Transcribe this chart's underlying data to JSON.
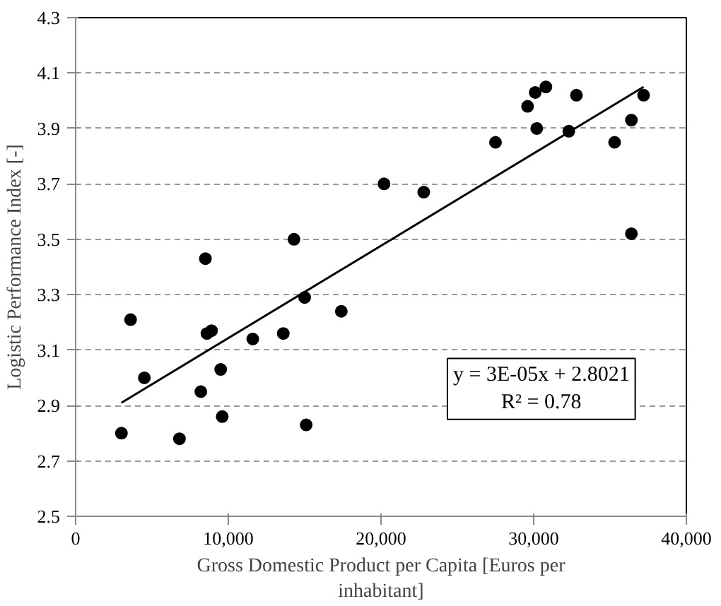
{
  "chart_data": {
    "type": "scatter",
    "xlabel": "Gross Domestic Product per Capita [Euros per inhabitant]",
    "ylabel": "Logistic Performance Index [-]",
    "x": [
      3000,
      3600,
      4500,
      6800,
      8200,
      8500,
      8600,
      8900,
      9500,
      9600,
      11600,
      13600,
      14300,
      15000,
      15100,
      17400,
      20200,
      22800,
      27500,
      29600,
      30100,
      30200,
      30800,
      32300,
      32800,
      35300,
      36400,
      36400,
      37200
    ],
    "values": [
      2.8,
      3.21,
      3.0,
      2.78,
      2.95,
      3.43,
      3.16,
      3.17,
      3.03,
      2.86,
      3.14,
      3.16,
      3.5,
      3.29,
      2.83,
      3.24,
      3.7,
      3.67,
      3.85,
      3.98,
      4.03,
      3.9,
      4.05,
      3.89,
      4.02,
      3.85,
      3.93,
      3.52,
      4.02
    ],
    "color": "#000000",
    "marker": "circle",
    "series": [
      {
        "type": "line",
        "x": [
          3000,
          37200
        ],
        "values": [
          2.91,
          4.05
        ],
        "color": "#000000",
        "line_style": "solid",
        "marker": "none"
      }
    ],
    "xlim": [
      0,
      40000
    ],
    "xticks": [
      {
        "value": 0,
        "label": "0"
      },
      {
        "value": 10000,
        "label": "10,000"
      },
      {
        "value": 20000,
        "label": "20,000"
      },
      {
        "value": 30000,
        "label": "30,000"
      },
      {
        "value": 40000,
        "label": "40,000"
      }
    ],
    "ylim": [
      2.5,
      4.3
    ],
    "yticks": [
      2.5,
      2.7,
      2.9,
      3.1,
      3.3,
      3.5,
      3.7,
      3.9,
      4.1,
      4.3
    ],
    "grid": "y",
    "annotations": [
      "y = 3E-05x + 2.8021\nR² = 0.78"
    ]
  }
}
